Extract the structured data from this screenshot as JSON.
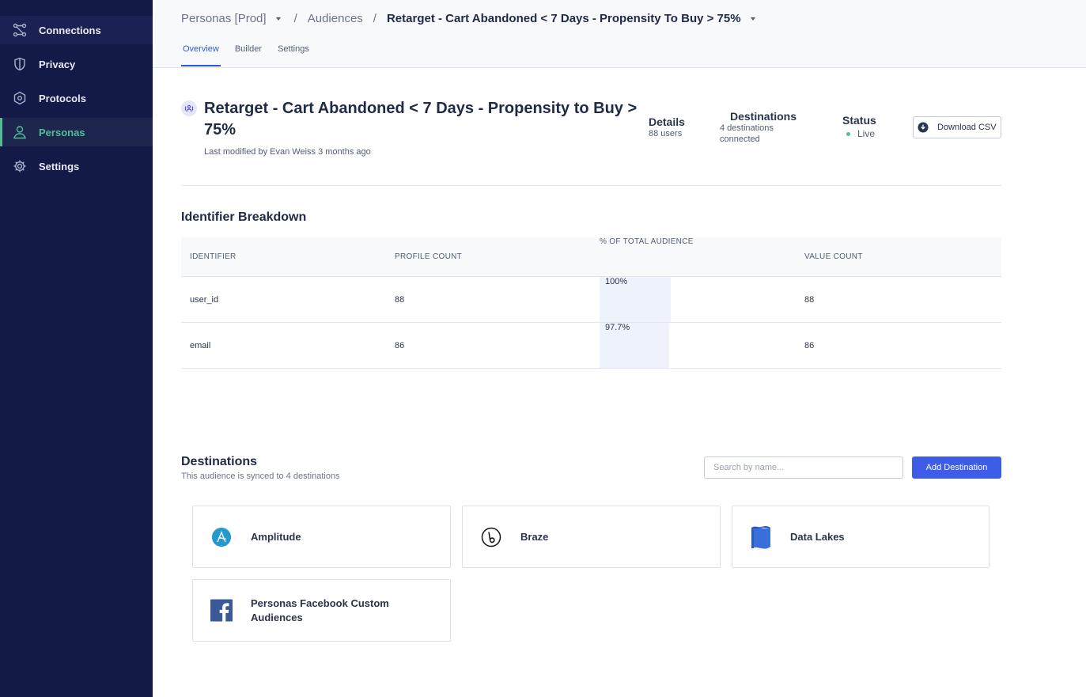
{
  "sidebar": {
    "items": [
      {
        "label": "Connections",
        "icon": "connections-icon"
      },
      {
        "label": "Privacy",
        "icon": "shield-icon"
      },
      {
        "label": "Protocols",
        "icon": "protocols-icon"
      },
      {
        "label": "Personas",
        "icon": "person-icon",
        "active": true
      },
      {
        "label": "Settings",
        "icon": "gear-icon"
      }
    ]
  },
  "header": {
    "breadcrumb": {
      "workspace": "Personas [Prod]",
      "section": "Audiences",
      "current": "Retarget - Cart Abandoned < 7 Days - Propensity To Buy > 75%",
      "separator": "/"
    },
    "tabs": [
      "Overview",
      "Builder",
      "Settings"
    ],
    "active_tab": "Overview"
  },
  "audience": {
    "title": "Retarget - Cart Abandoned < 7 Days - Propensity to Buy > 75%",
    "modified": "Last modified by Evan Weiss 3 months ago",
    "details_label": "Details",
    "details_value": "88 users",
    "destinations_label": "Destinations",
    "destinations_value": "4 destinations connected",
    "status_label": "Status",
    "status_value": "Live",
    "download_label": "Download CSV"
  },
  "identifier_breakdown": {
    "title": "Identifier Breakdown",
    "columns": [
      "IDENTIFIER",
      "PROFILE COUNT",
      "% OF TOTAL AUDIENCE",
      "VALUE COUNT"
    ],
    "rows": [
      {
        "identifier": "user_id",
        "profile_count": "88",
        "pct": "100%",
        "pct_fraction": 1.0,
        "value_count": "88"
      },
      {
        "identifier": "email",
        "profile_count": "86",
        "pct": "97.7%",
        "pct_fraction": 0.977,
        "value_count": "86"
      }
    ]
  },
  "destinations": {
    "title": "Destinations",
    "subtitle": "This audience is synced to 4 destinations",
    "search_placeholder": "Search by name...",
    "add_label": "Add Destination",
    "items": [
      {
        "name": "Amplitude",
        "icon": "amplitude-logo"
      },
      {
        "name": "Braze",
        "icon": "braze-logo"
      },
      {
        "name": "Data Lakes",
        "icon": "data-lakes-logo"
      },
      {
        "name": "Personas Facebook Custom Audiences",
        "icon": "facebook-logo"
      }
    ]
  },
  "colors": {
    "sidebar_bg": "#141a47",
    "active_green": "#52bd94",
    "primary_blue": "#3d5ce8",
    "tab_blue": "#2f58d8"
  }
}
